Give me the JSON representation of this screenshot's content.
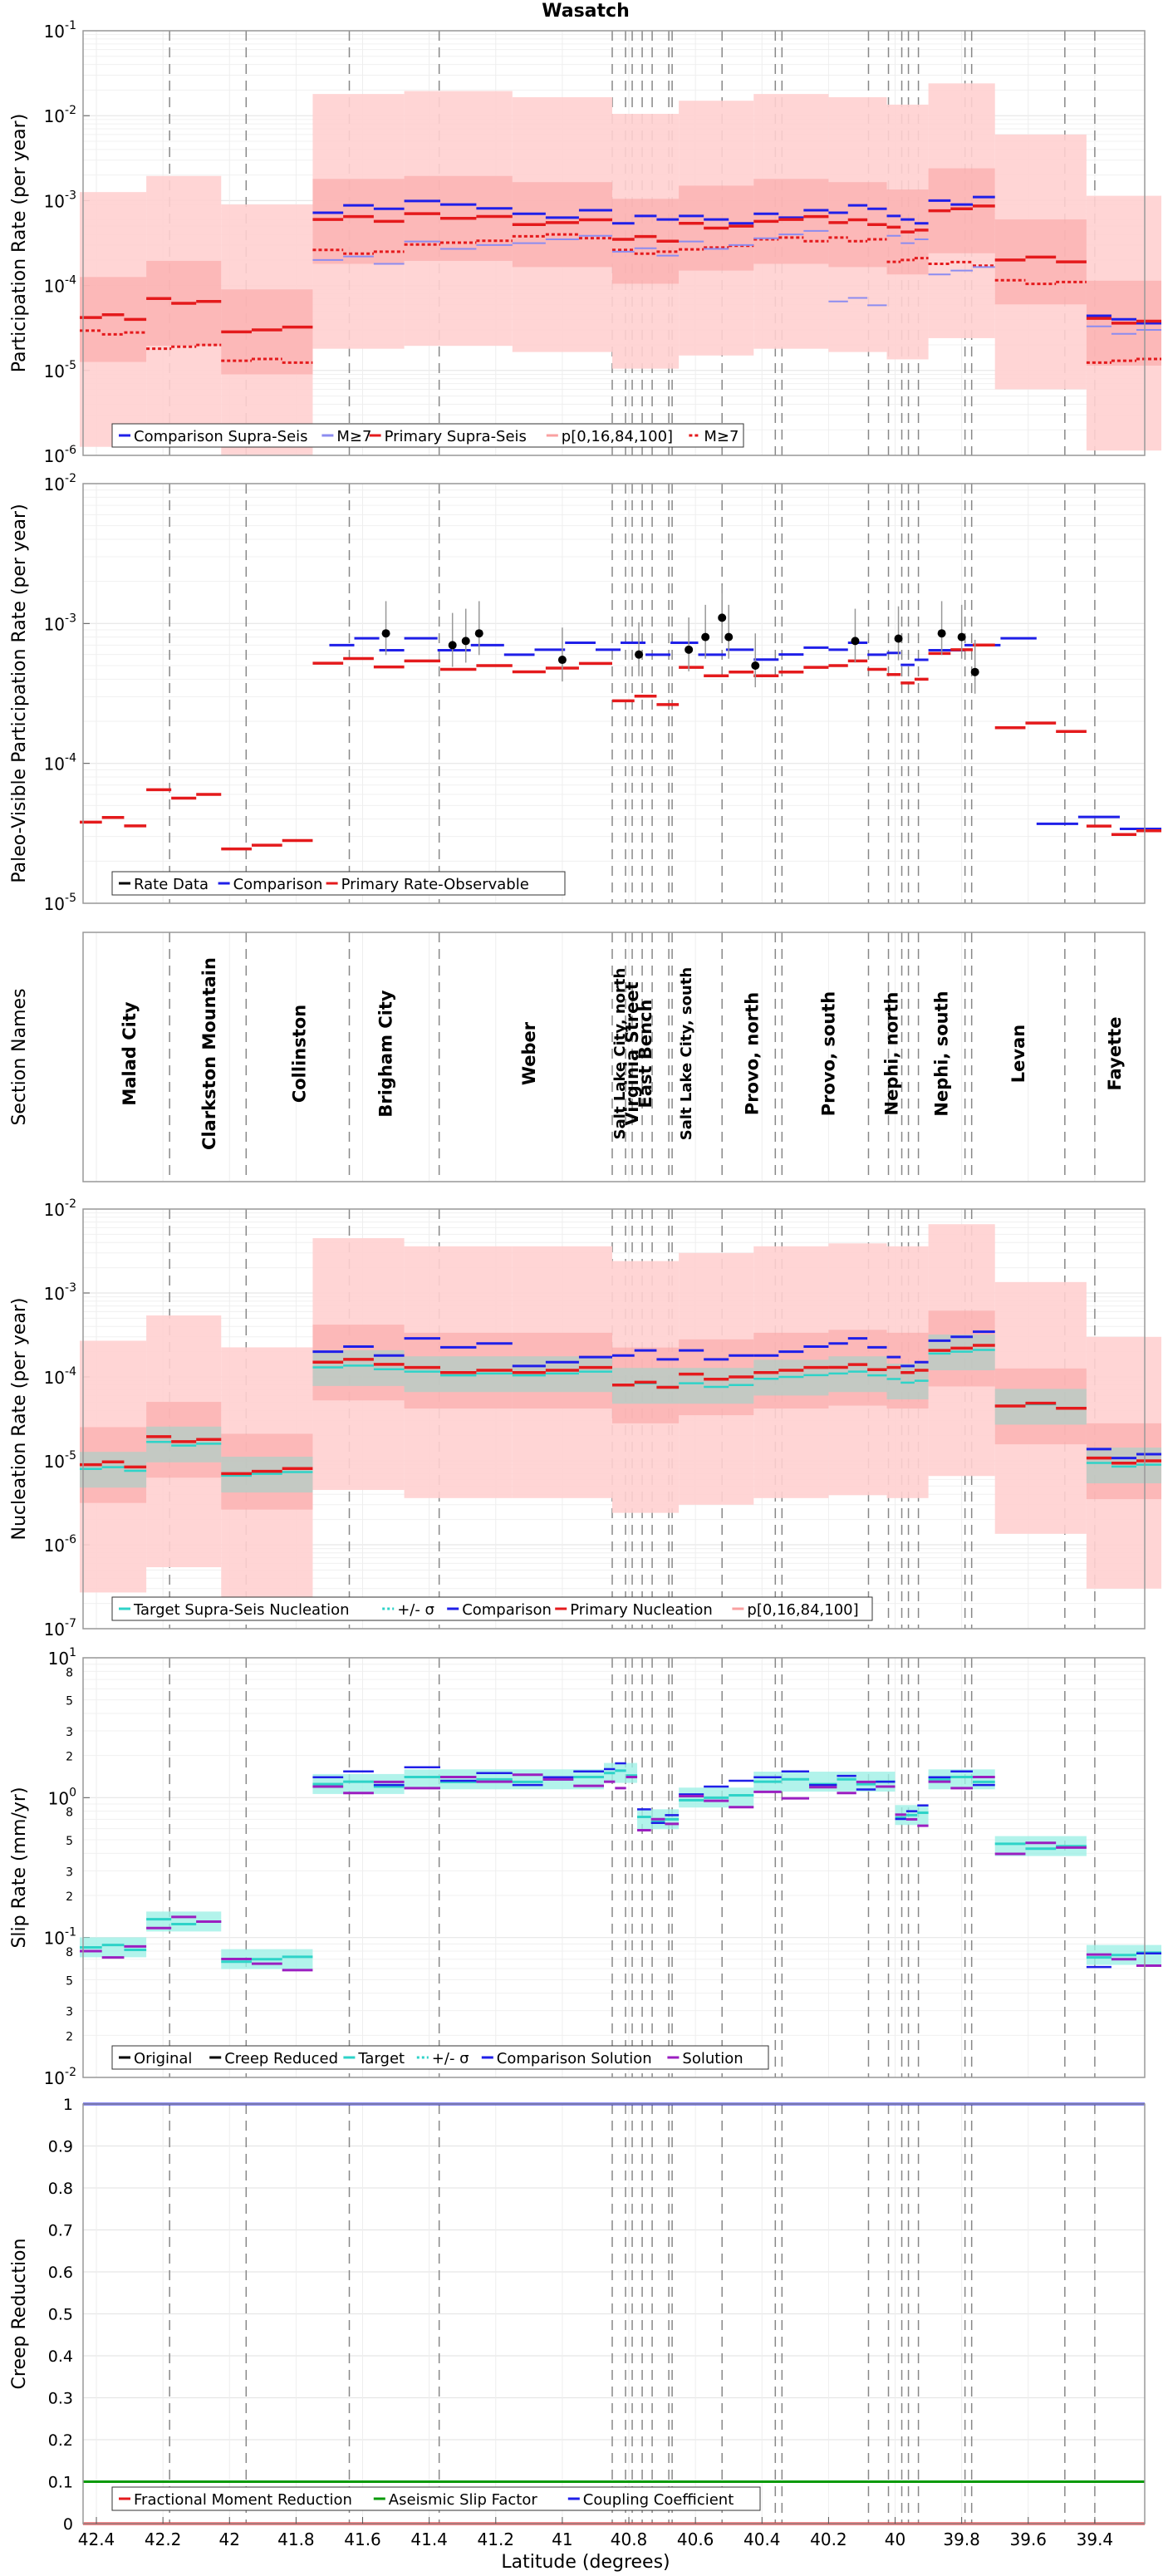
{
  "figure": {
    "title": "Wasatch",
    "xlabel": "Latitude (degrees)",
    "x_ticks": [
      "42.4",
      "42.2",
      "42",
      "41.8",
      "41.6",
      "41.4",
      "41.2",
      "41",
      "40.8",
      "40.6",
      "40.4",
      "40.2",
      "40",
      "39.8",
      "39.6",
      "39.4"
    ],
    "x_range": [
      42.44,
      39.25
    ],
    "section_boundaries": [
      42.18,
      41.95,
      41.64,
      41.37,
      40.85,
      40.81,
      40.79,
      40.76,
      40.73,
      40.68,
      40.67,
      40.52,
      40.36,
      40.34,
      40.08,
      40.02,
      39.98,
      39.96,
      39.93,
      39.79,
      39.77,
      39.49,
      39.4
    ],
    "colors": {
      "comparison": "#1f1fe8",
      "comparison_m7": "#8c8cf0",
      "primary": "#e41a1c",
      "band_outer": "#ffd0d0",
      "band_inner": "#f9a0a0",
      "target": "#2ed3c8",
      "original": "#000000",
      "solution": "#9b1fc0",
      "green": "#0a9a0a",
      "grid": "#e6e6e6",
      "dash": "#888888"
    }
  },
  "chart_data": [
    {
      "type": "line",
      "id": "participation",
      "ylabel": "Participation Rate (per year)",
      "scale": "log",
      "ylim_exp": [
        -6,
        -1
      ],
      "legend": [
        "Comparison Supra-Seis",
        "M≥7",
        "Primary Supra-Seis",
        "p[0,16,84,100]",
        "M≥7"
      ],
      "x": [
        42.35,
        42.15,
        41.9,
        41.6,
        41.35,
        40.95,
        40.75,
        40.55,
        40.3,
        40.1,
        39.95,
        39.85,
        39.55,
        39.3
      ],
      "series": [
        {
          "name": "Primary Supra-Seis",
          "values": [
            4.2e-05,
            6.5e-05,
            3e-05,
            0.0006,
            0.00065,
            0.00055,
            0.00035,
            0.0005,
            0.0006,
            0.00055,
            0.00045,
            0.0008,
            0.0002,
            3.8e-05
          ]
        },
        {
          "name": "Comparison Supra-Seis",
          "values": [
            null,
            null,
            null,
            0.0008,
            0.0009,
            0.0007,
            0.0006,
            0.0006,
            0.0007,
            0.0008,
            0.0006,
            0.001,
            null,
            4e-05
          ]
        },
        {
          "name": "Comparison M≥7",
          "values": [
            null,
            null,
            null,
            0.0002,
            0.0003,
            0.00035,
            0.00025,
            0.0003,
            0.0004,
            6.5e-05,
            0.00035,
            0.00015,
            null,
            3e-05
          ]
        },
        {
          "name": "Primary M≥7",
          "values": [
            2.8e-05,
            1.9e-05,
            1.3e-05,
            0.00025,
            0.00032,
            0.00038,
            0.00025,
            0.00028,
            0.00035,
            0.00035,
            0.0002,
            0.00018,
            0.00011,
            1.3e-05
          ]
        }
      ]
    },
    {
      "type": "scatter",
      "id": "paleo",
      "ylabel": "Paleo-Visible Participation Rate (per year)",
      "scale": "log",
      "ylim_exp": [
        -5,
        -2
      ],
      "legend": [
        "Rate Data",
        "Comparison",
        "Primary Rate-Observable"
      ],
      "series": [
        {
          "name": "Rate Data",
          "x": [
            41.53,
            41.33,
            41.29,
            41.25,
            41.0,
            40.77,
            40.62,
            40.57,
            40.52,
            40.5,
            40.42,
            40.12,
            39.99,
            39.86,
            39.8,
            39.76
          ],
          "values": [
            0.00085,
            0.0007,
            0.00075,
            0.00085,
            0.00055,
            0.0006,
            0.00065,
            0.0008,
            0.0011,
            0.0008,
            0.0005,
            0.00075,
            0.00078,
            0.00085,
            0.0008,
            0.00045
          ]
        },
        {
          "name": "Primary Rate-Observable",
          "x": [
            42.35,
            42.15,
            41.9,
            41.6,
            41.35,
            40.95,
            40.75,
            40.55,
            40.3,
            40.1,
            39.95,
            39.85,
            39.55,
            39.3
          ],
          "values": [
            3.8e-05,
            6e-05,
            2.6e-05,
            0.00052,
            0.0005,
            0.00048,
            0.00028,
            0.00045,
            0.00045,
            0.0005,
            0.0004,
            0.00065,
            0.00018,
            3.3e-05
          ]
        },
        {
          "name": "Comparison",
          "x": [
            41.6,
            41.35,
            41.0,
            40.8,
            40.55,
            40.3,
            40.1,
            39.95,
            39.85,
            39.3
          ],
          "values": [
            0.0007,
            0.0007,
            0.00065,
            0.00065,
            0.00065,
            0.0006,
            0.00065,
            0.00055,
            0.0007,
            3.7e-05
          ]
        }
      ]
    },
    {
      "type": "table",
      "id": "sections",
      "ylabel": "Section Names",
      "labels": [
        {
          "name": "Malad City",
          "x": 42.3
        },
        {
          "name": "Clarkston Mountain",
          "x": 42.06
        },
        {
          "name": "Collinston",
          "x": 41.79
        },
        {
          "name": "Brigham City",
          "x": 41.53
        },
        {
          "name": "Weber",
          "x": 41.1
        },
        {
          "name": "Salt Lake City, north",
          "x": 40.83
        },
        {
          "name": "Virginia Street",
          "x": 40.79
        },
        {
          "name": "East Bench",
          "x": 40.75
        },
        {
          "name": "Salt Lake City, south",
          "x": 40.63
        },
        {
          "name": "Provo, north",
          "x": 40.43
        },
        {
          "name": "Provo, south",
          "x": 40.2
        },
        {
          "name": "Nephi, north",
          "x": 40.01
        },
        {
          "name": "Nephi, south",
          "x": 39.86
        },
        {
          "name": "Levan",
          "x": 39.63
        },
        {
          "name": "Fayette",
          "x": 39.34
        }
      ]
    },
    {
      "type": "line",
      "id": "nucleation",
      "ylabel": "Nucleation Rate (per year)",
      "scale": "log",
      "ylim_exp": [
        -7,
        -2
      ],
      "legend": [
        "Target Supra-Seis Nucleation",
        "+/- σ",
        "Comparison",
        "Primary Nucleation",
        "p[0,16,84,100]"
      ],
      "x": [
        42.35,
        42.15,
        41.9,
        41.6,
        41.35,
        40.95,
        40.75,
        40.55,
        40.3,
        40.1,
        39.95,
        39.85,
        39.55,
        39.3
      ],
      "series": [
        {
          "name": "Primary Nucleation",
          "values": [
            9e-06,
            1.8e-05,
            7.5e-06,
            0.00015,
            0.00012,
            0.00012,
            8e-05,
            0.0001,
            0.00012,
            0.00013,
            0.00012,
            0.00022,
            4.5e-05,
            1e-05
          ]
        },
        {
          "name": "Comparison",
          "values": [
            null,
            null,
            null,
            0.0002,
            0.00025,
            0.00015,
            0.00018,
            0.00018,
            0.0002,
            0.00025,
            0.00015,
            0.0003,
            null,
            1.2e-05
          ]
        },
        {
          "name": "Target Supra-Seis Nucleation",
          "values": [
            8e-06,
            1.6e-05,
            7e-06,
            0.00013,
            0.00011,
            0.00011,
            8e-05,
            8e-05,
            0.0001,
            0.00011,
            9e-05,
            0.0002,
            4.5e-05,
            9e-06
          ]
        }
      ]
    },
    {
      "type": "line",
      "id": "slip",
      "ylabel": "Slip Rate (mm/yr)",
      "scale": "log",
      "ylim_exp": [
        -2,
        1
      ],
      "y_minor_labels": [
        "8",
        "5",
        "3",
        "2"
      ],
      "legend": [
        "Original",
        "Creep Reduced",
        "Target",
        "+/- σ",
        "Comparison Solution",
        "Solution"
      ],
      "x": [
        42.35,
        42.15,
        41.9,
        41.6,
        41.35,
        40.95,
        40.8,
        40.75,
        40.55,
        40.3,
        40.05,
        39.95,
        39.85,
        39.55,
        39.3
      ],
      "series": [
        {
          "name": "Target",
          "values": [
            0.085,
            0.13,
            0.07,
            1.25,
            1.35,
            1.35,
            1.5,
            0.7,
            1.0,
            1.3,
            1.3,
            0.75,
            1.35,
            0.45,
            0.075
          ]
        },
        {
          "name": "Solution",
          "values": [
            0.08,
            0.13,
            0.065,
            1.2,
            1.3,
            1.35,
            1.3,
            0.65,
            0.95,
            1.1,
            1.2,
            0.7,
            1.3,
            0.44,
            0.07
          ]
        },
        {
          "name": "Comparison Solution",
          "values": [
            null,
            null,
            null,
            1.4,
            1.5,
            1.4,
            1.6,
            0.75,
            1.2,
            1.4,
            1.3,
            0.8,
            1.4,
            null,
            0.07
          ]
        }
      ]
    },
    {
      "type": "line",
      "id": "creep",
      "ylabel": "Creep Reduction",
      "scale": "linear",
      "ylim": [
        0,
        1
      ],
      "y_ticks": [
        "0",
        "0.1",
        "0.2",
        "0.3",
        "0.4",
        "0.5",
        "0.6",
        "0.7",
        "0.8",
        "0.9",
        "1"
      ],
      "legend": [
        "Fractional Moment Reduction",
        "Aseismic Slip Factor",
        "Coupling Coefficient"
      ],
      "series": [
        {
          "name": "Fractional Moment Reduction",
          "values": [
            0
          ]
        },
        {
          "name": "Aseismic Slip Factor",
          "values": [
            0.1
          ]
        },
        {
          "name": "Coupling Coefficient",
          "values": [
            1
          ]
        }
      ]
    }
  ]
}
